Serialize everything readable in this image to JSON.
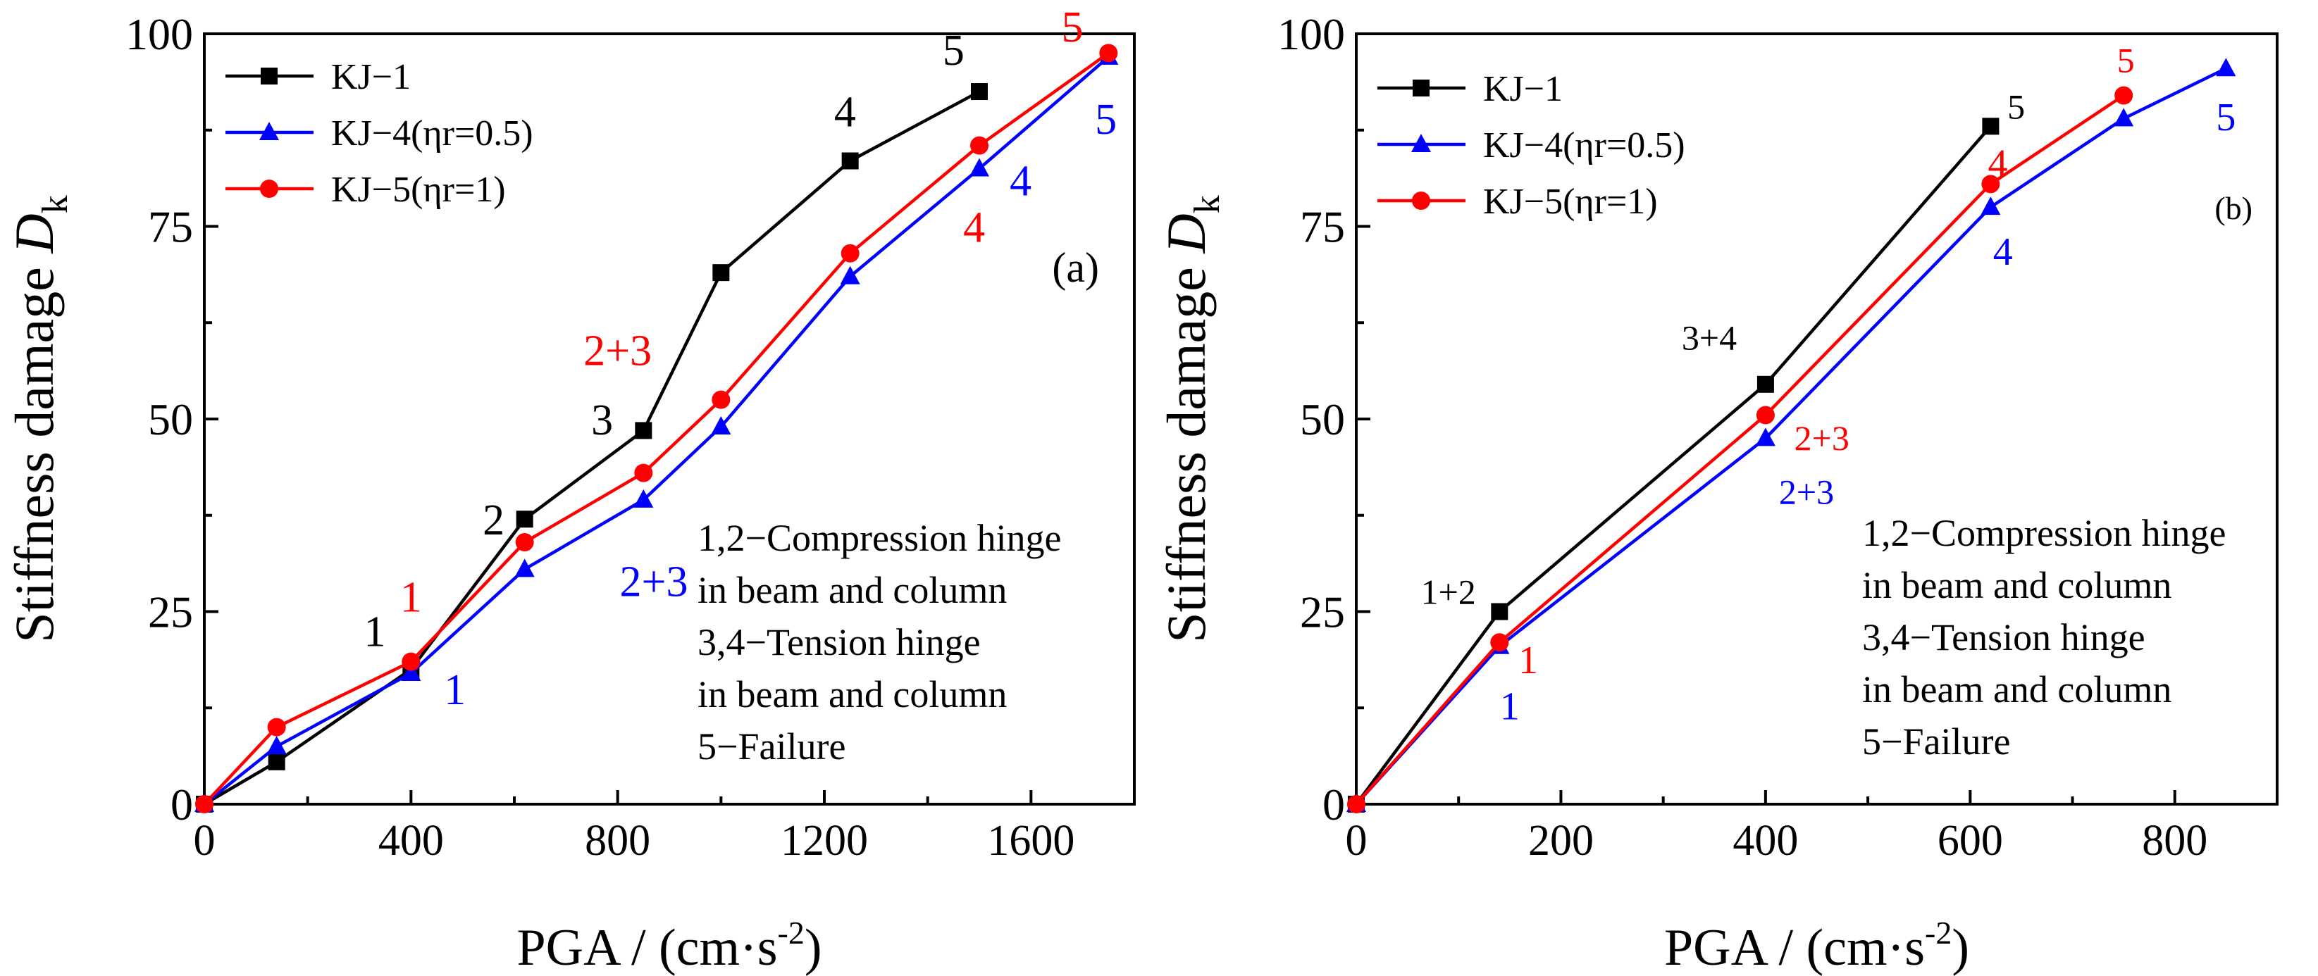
{
  "figure": {
    "panel_a_label": "(a)",
    "panel_b_label": "(b)"
  },
  "chart_data": [
    {
      "type": "line",
      "panel": "(a)",
      "xlabel": "PGA / (cm·s-2)",
      "xlabel_main": "PGA / (cm·s",
      "xlabel_sup": "-2",
      "xlabel_close": ")",
      "ylabel": "Stiffness damage Dk",
      "ylabel_main": "Stiffness damage ",
      "ylabel_var": "D",
      "ylabel_sub": "k",
      "xlim": [
        0,
        1800
      ],
      "ylim": [
        0,
        100
      ],
      "xticks": [
        0,
        400,
        800,
        1200,
        1600
      ],
      "yticks": [
        0,
        25,
        50,
        75,
        100
      ],
      "legend_position": "top-left",
      "series": [
        {
          "name": "KJ−1",
          "color": "#000000",
          "marker": "square",
          "x": [
            0,
            140,
            400,
            620,
            850,
            1000,
            1250,
            1500
          ],
          "y": [
            0,
            5.5,
            17.5,
            37,
            48.5,
            69,
            83.5,
            92.5
          ]
        },
        {
          "name": "KJ−4(ηr=0.5)",
          "color": "#0000ff",
          "marker": "triangle",
          "x": [
            0,
            140,
            400,
            620,
            850,
            1000,
            1250,
            1500,
            1750
          ],
          "y": [
            0,
            7.5,
            17,
            30.5,
            39.5,
            49,
            68.5,
            82.5,
            97
          ]
        },
        {
          "name": "KJ−5(ηr=1)",
          "color": "#ff0000",
          "marker": "circle",
          "x": [
            0,
            140,
            400,
            620,
            850,
            1000,
            1250,
            1500,
            1750
          ],
          "y": [
            0,
            10,
            18.5,
            34,
            43,
            52.5,
            71.5,
            85.5,
            97.5
          ]
        }
      ],
      "annotations": [
        {
          "text": "1",
          "color": "#000000",
          "x": 330,
          "y": 20.5
        },
        {
          "text": "2",
          "color": "#000000",
          "x": 560,
          "y": 35
        },
        {
          "text": "3",
          "color": "#000000",
          "x": 770,
          "y": 48
        },
        {
          "text": "4",
          "color": "#000000",
          "x": 1240,
          "y": 88
        },
        {
          "text": "5",
          "color": "#000000",
          "x": 1450,
          "y": 96
        },
        {
          "text": "1",
          "color": "#ff0000",
          "x": 400,
          "y": 25
        },
        {
          "text": "2+3",
          "color": "#ff0000",
          "x": 800,
          "y": 57
        },
        {
          "text": "4",
          "color": "#ff0000",
          "x": 1490,
          "y": 73
        },
        {
          "text": "5",
          "color": "#ff0000",
          "x": 1680,
          "y": 99
        },
        {
          "text": "1",
          "color": "#0000ff",
          "x": 485,
          "y": 13
        },
        {
          "text": "2+3",
          "color": "#0000ff",
          "x": 870,
          "y": 27
        },
        {
          "text": "4",
          "color": "#0000ff",
          "x": 1580,
          "y": 79
        },
        {
          "text": "5",
          "color": "#0000ff",
          "x": 1745,
          "y": 87
        }
      ],
      "note_lines": [
        "1,2−Compression hinge",
        "in beam and column",
        "3,4−Tension hinge",
        "in beam and column",
        "5−Failure"
      ]
    },
    {
      "type": "line",
      "panel": "(b)",
      "xlabel": "PGA / (cm·s-2)",
      "xlabel_main": "PGA / (cm·s",
      "xlabel_sup": "-2",
      "xlabel_close": ")",
      "ylabel": "Stiffness damage Dk",
      "ylabel_main": "Stiffness damage ",
      "ylabel_var": "D",
      "ylabel_sub": "k",
      "xlim": [
        0,
        900
      ],
      "ylim": [
        0,
        100
      ],
      "xticks": [
        0,
        200,
        400,
        600,
        800
      ],
      "yticks": [
        0,
        25,
        50,
        75,
        100
      ],
      "legend_position": "top-left",
      "series": [
        {
          "name": "KJ−1",
          "color": "#000000",
          "marker": "square",
          "x": [
            0,
            140,
            400,
            620
          ],
          "y": [
            0,
            25,
            54.5,
            88
          ]
        },
        {
          "name": "KJ−4(ηr=0.5)",
          "color": "#0000ff",
          "marker": "triangle",
          "x": [
            0,
            140,
            400,
            620,
            750,
            850
          ],
          "y": [
            0,
            20.5,
            47.5,
            77.5,
            89,
            95.5
          ]
        },
        {
          "name": "KJ−5(ηr=1)",
          "color": "#ff0000",
          "marker": "circle",
          "x": [
            0,
            140,
            400,
            620,
            750
          ],
          "y": [
            0,
            21,
            50.5,
            80.5,
            92
          ]
        }
      ],
      "annotations": [
        {
          "text": "1+2",
          "color": "#000000",
          "x": 90,
          "y": 26
        },
        {
          "text": "3+4",
          "color": "#000000",
          "x": 345,
          "y": 59
        },
        {
          "text": "5",
          "color": "#000000",
          "x": 645,
          "y": 89
        },
        {
          "text": "1",
          "color": "#ff0000",
          "x": 168,
          "y": 17
        },
        {
          "text": "2+3",
          "color": "#ff0000",
          "x": 455,
          "y": 46
        },
        {
          "text": "4",
          "color": "#ff0000",
          "x": 627,
          "y": 81.5
        },
        {
          "text": "5",
          "color": "#ff0000",
          "x": 752,
          "y": 95
        },
        {
          "text": "1",
          "color": "#0000ff",
          "x": 150,
          "y": 11
        },
        {
          "text": "2+3",
          "color": "#0000ff",
          "x": 440,
          "y": 39
        },
        {
          "text": "4",
          "color": "#0000ff",
          "x": 632,
          "y": 70
        },
        {
          "text": "5",
          "color": "#0000ff",
          "x": 850,
          "y": 87.5
        }
      ],
      "note_lines": [
        "1,2−Compression hinge",
        "in beam and column",
        "3,4−Tension hinge",
        "in beam and column",
        "5−Failure"
      ]
    }
  ]
}
